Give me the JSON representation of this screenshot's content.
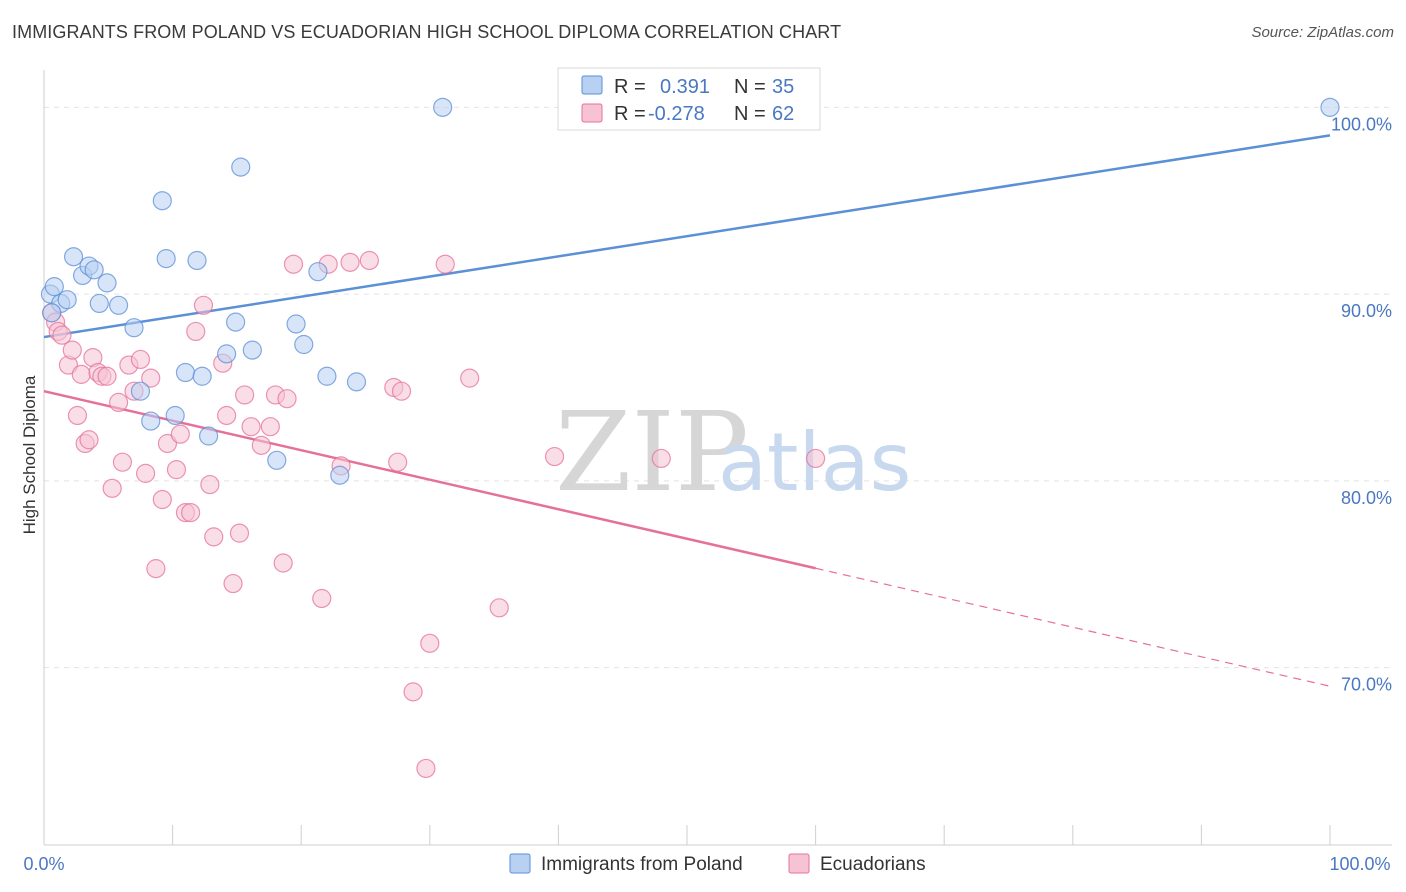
{
  "title": "IMMIGRANTS FROM POLAND VS ECUADORIAN HIGH SCHOOL DIPLOMA CORRELATION CHART",
  "source": "Source: ZipAtlas.com",
  "watermark": {
    "zip": "ZIP",
    "atlas": "atlas"
  },
  "colors": {
    "blue": "#5b8fd6",
    "blue_fill": "#b8d0f2",
    "pink": "#e5709b",
    "pink_fill": "#f6c3d4",
    "axis_text": "#4a78c2"
  },
  "legend": {
    "r_label": "R =",
    "n_label": "N =",
    "rows": [
      {
        "r": "0.391",
        "n": "35"
      },
      {
        "r": "-0.278",
        "n": "62"
      }
    ]
  },
  "chart_data": {
    "type": "scatter",
    "ylabel": "High School Diploma",
    "xlim": [
      0,
      100
    ],
    "ylim": [
      60.5,
      102
    ],
    "x_tick_labels": {
      "left": "0.0%",
      "right": "100.0%"
    },
    "y_ticks": [
      {
        "value": 100,
        "label": "100.0%"
      },
      {
        "value": 90,
        "label": "90.0%"
      },
      {
        "value": 80,
        "label": "80.0%"
      },
      {
        "value": 70,
        "label": "70.0%"
      }
    ],
    "grid": true,
    "legend_position": "top-center",
    "series": [
      {
        "name": "Immigrants from Poland",
        "color": "#5b8fd6",
        "trend": {
          "x0": 0,
          "y0": 87.7,
          "x1": 100,
          "y1": 98.5,
          "dashed_from": null
        },
        "points": [
          [
            0.5,
            90.0
          ],
          [
            0.8,
            90.4
          ],
          [
            1.3,
            89.5
          ],
          [
            1.8,
            89.7
          ],
          [
            0.6,
            89.0
          ],
          [
            2.3,
            92.0
          ],
          [
            3.0,
            91.0
          ],
          [
            3.5,
            91.5
          ],
          [
            3.9,
            91.3
          ],
          [
            4.3,
            89.5
          ],
          [
            4.9,
            90.6
          ],
          [
            5.8,
            89.4
          ],
          [
            7.0,
            88.2
          ],
          [
            7.5,
            84.8
          ],
          [
            8.3,
            83.2
          ],
          [
            9.2,
            95.0
          ],
          [
            9.5,
            91.9
          ],
          [
            10.2,
            83.5
          ],
          [
            11.0,
            85.8
          ],
          [
            11.9,
            91.8
          ],
          [
            12.3,
            85.6
          ],
          [
            12.8,
            82.4
          ],
          [
            14.2,
            86.8
          ],
          [
            14.9,
            88.5
          ],
          [
            15.3,
            96.8
          ],
          [
            16.2,
            87.0
          ],
          [
            18.1,
            81.1
          ],
          [
            19.6,
            88.4
          ],
          [
            20.2,
            87.3
          ],
          [
            21.3,
            91.2
          ],
          [
            22.0,
            85.6
          ],
          [
            23.0,
            80.3
          ],
          [
            24.3,
            85.3
          ],
          [
            31.0,
            100.0
          ],
          [
            100.0,
            100.0
          ]
        ]
      },
      {
        "name": "Ecuadorians",
        "color": "#e5709b",
        "trend": {
          "x0": 0,
          "y0": 84.8,
          "x1": 100,
          "y1": 69.0,
          "dashed_from": 60
        },
        "points": [
          [
            0.6,
            89.0
          ],
          [
            0.9,
            88.5
          ],
          [
            1.1,
            88.0
          ],
          [
            1.4,
            87.8
          ],
          [
            1.9,
            86.2
          ],
          [
            2.2,
            87.0
          ],
          [
            2.6,
            83.5
          ],
          [
            2.9,
            85.7
          ],
          [
            3.2,
            82.0
          ],
          [
            3.5,
            82.2
          ],
          [
            3.8,
            86.6
          ],
          [
            4.2,
            85.8
          ],
          [
            4.5,
            85.6
          ],
          [
            4.9,
            85.6
          ],
          [
            5.3,
            79.6
          ],
          [
            5.8,
            84.2
          ],
          [
            6.1,
            81.0
          ],
          [
            6.6,
            86.2
          ],
          [
            7.0,
            84.8
          ],
          [
            7.5,
            86.5
          ],
          [
            7.9,
            80.4
          ],
          [
            8.3,
            85.5
          ],
          [
            8.7,
            75.3
          ],
          [
            9.2,
            79.0
          ],
          [
            9.6,
            82.0
          ],
          [
            10.3,
            80.6
          ],
          [
            10.6,
            82.5
          ],
          [
            11.0,
            78.3
          ],
          [
            11.4,
            78.3
          ],
          [
            11.8,
            88.0
          ],
          [
            12.4,
            89.4
          ],
          [
            12.9,
            79.8
          ],
          [
            13.2,
            77.0
          ],
          [
            13.9,
            86.3
          ],
          [
            14.2,
            83.5
          ],
          [
            14.7,
            74.5
          ],
          [
            15.2,
            77.2
          ],
          [
            15.6,
            84.6
          ],
          [
            16.1,
            82.9
          ],
          [
            16.9,
            81.9
          ],
          [
            17.6,
            82.9
          ],
          [
            18.0,
            84.6
          ],
          [
            18.6,
            75.6
          ],
          [
            18.9,
            84.4
          ],
          [
            19.4,
            91.6
          ],
          [
            21.6,
            73.7
          ],
          [
            22.1,
            91.6
          ],
          [
            23.1,
            80.8
          ],
          [
            23.8,
            91.7
          ],
          [
            25.3,
            91.8
          ],
          [
            27.2,
            85.0
          ],
          [
            27.5,
            81.0
          ],
          [
            27.8,
            84.8
          ],
          [
            28.7,
            68.7
          ],
          [
            30.0,
            71.3
          ],
          [
            29.7,
            64.6
          ],
          [
            31.2,
            91.6
          ],
          [
            33.1,
            85.5
          ],
          [
            35.4,
            73.2
          ],
          [
            39.7,
            81.3
          ],
          [
            48.0,
            81.2
          ],
          [
            60.0,
            81.2
          ]
        ]
      }
    ]
  },
  "bottom_legend": [
    {
      "label": "Immigrants from Poland"
    },
    {
      "label": "Ecuadorians"
    }
  ]
}
